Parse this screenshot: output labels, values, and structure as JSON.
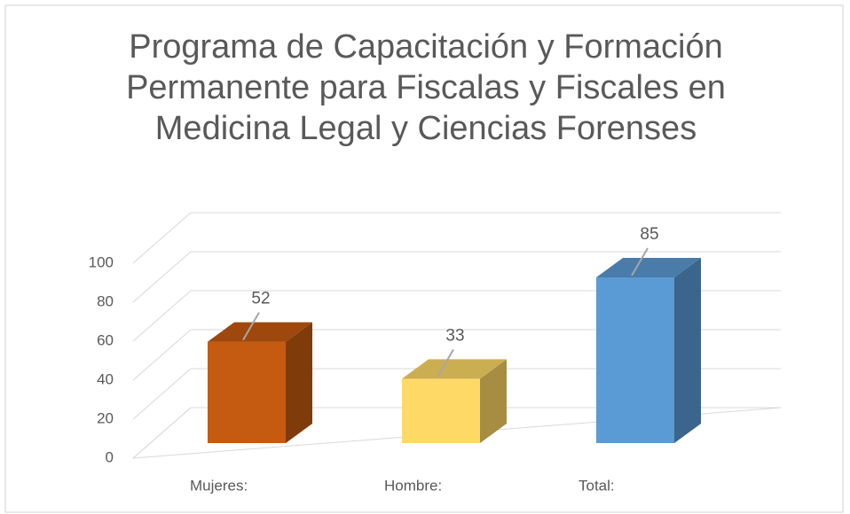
{
  "chart_data": {
    "type": "bar3d",
    "title": "Programa de Capacitación y Formación Permanente para Fiscalas y Fiscales en Medicina Legal y Ciencias Forenses",
    "categories": [
      "Mujeres:",
      "Hombre:",
      "Total:"
    ],
    "values": [
      52,
      33,
      85
    ],
    "colors": [
      "#c55a11",
      "#ffd966",
      "#5b9bd5"
    ],
    "ylim": [
      0,
      100
    ],
    "yticks": [
      0,
      20,
      40,
      60,
      80,
      100
    ],
    "grid": true
  }
}
